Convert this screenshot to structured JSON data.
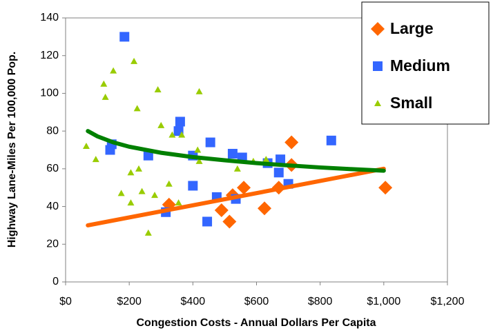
{
  "chart_data": {
    "type": "scatter",
    "xlabel": "Congestion Costs - Annual Dollars Per Capita",
    "ylabel": "Highway Lane-Miles Per 100,000 Pop.",
    "xlim": [
      0,
      1200
    ],
    "xticks": [
      {
        "value": 0,
        "label": "$0"
      },
      {
        "value": 200,
        "label": "$200"
      },
      {
        "value": 400,
        "label": "$400"
      },
      {
        "value": 600,
        "label": "$600"
      },
      {
        "value": 800,
        "label": "$800"
      },
      {
        "value": 1000,
        "label": "$1,000"
      },
      {
        "value": 1200,
        "label": "$1,200"
      }
    ],
    "ylim": [
      0,
      140
    ],
    "yticks": [
      0,
      20,
      40,
      60,
      80,
      100,
      120,
      140
    ],
    "legend": "top-right",
    "series": [
      {
        "name": "Large",
        "color": "#ff6600",
        "marker": "diamond",
        "x": [
          325,
          490,
          515,
          525,
          560,
          625,
          670,
          710,
          710,
          1005
        ],
        "values": [
          41,
          38,
          32,
          46,
          50,
          39,
          50,
          62,
          74,
          50
        ]
      },
      {
        "name": "Medium",
        "color": "#3366ff",
        "marker": "square",
        "x": [
          185,
          140,
          145,
          260,
          315,
          355,
          360,
          400,
          400,
          445,
          455,
          475,
          525,
          535,
          555,
          635,
          670,
          675,
          700,
          835
        ],
        "values": [
          130,
          70,
          73,
          67,
          37,
          80,
          85,
          67,
          51,
          32,
          74,
          45,
          68,
          44,
          66,
          63,
          58,
          65,
          52,
          75
        ]
      },
      {
        "name": "Small",
        "color": "#99cc00",
        "marker": "triangle",
        "x": [
          65,
          95,
          120,
          125,
          150,
          175,
          205,
          205,
          215,
          225,
          230,
          240,
          260,
          280,
          290,
          300,
          325,
          335,
          355,
          365,
          415,
          420,
          420,
          540,
          590,
          630
        ],
        "values": [
          72,
          65,
          105,
          98,
          112,
          47,
          58,
          42,
          117,
          92,
          60,
          48,
          26,
          46,
          102,
          83,
          52,
          78,
          42,
          78,
          70,
          101,
          64,
          60,
          64,
          65
        ]
      }
    ],
    "trendlines": [
      {
        "color": "#ff6600",
        "x": [
          70,
          1000
        ],
        "values": [
          30,
          60
        ]
      },
      {
        "color": "#008000",
        "x": [
          70,
          100,
          150,
          200,
          300,
          400,
          500,
          600,
          700,
          800,
          900,
          1000
        ],
        "values": [
          80,
          77.2,
          74,
          71.7,
          68.5,
          66.2,
          64.5,
          63,
          61.8,
          60.7,
          59.8,
          59
        ]
      }
    ]
  }
}
